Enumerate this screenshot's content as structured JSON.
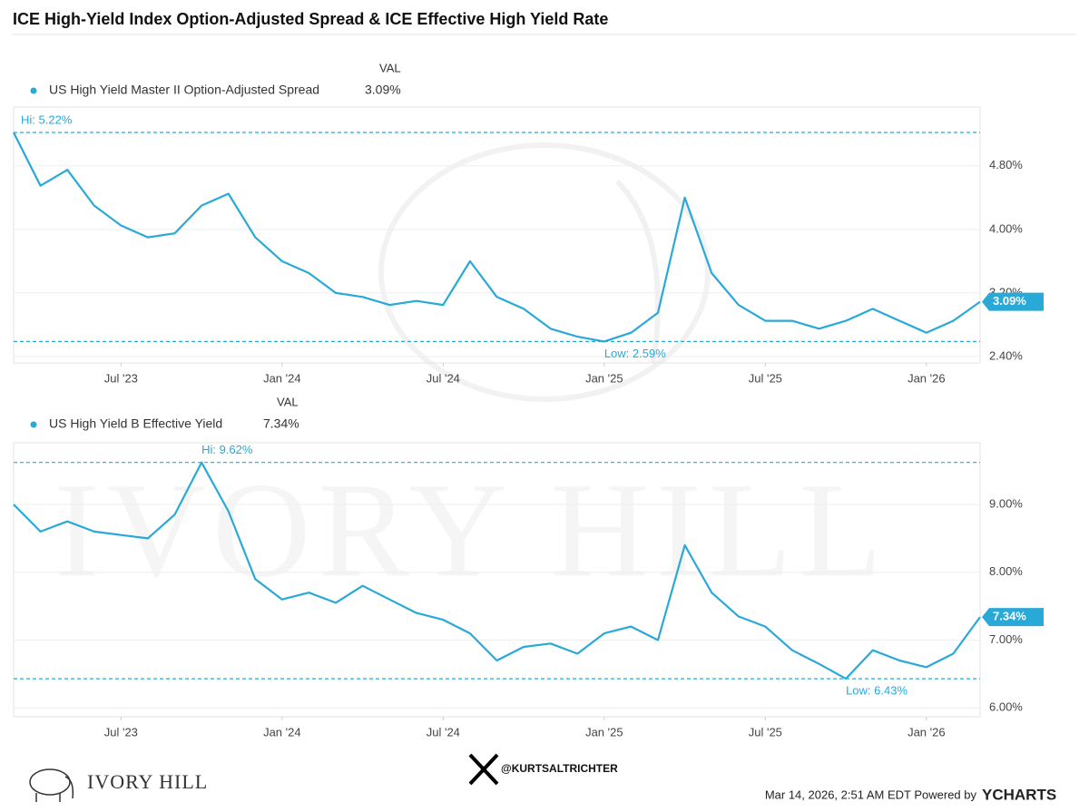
{
  "title": "ICE High-Yield Index Option-Adjusted Spread & ICE Effective High Yield Rate",
  "chart_data": [
    {
      "type": "line",
      "column_header": "VAL",
      "series": [
        {
          "name": "US High Yield Master II Option-Adjusted Spread",
          "color": "#29a9d8",
          "legend_value": "3.09%",
          "values": [
            5.22,
            4.55,
            4.75,
            4.3,
            4.05,
            3.9,
            3.95,
            4.3,
            4.45,
            3.9,
            3.6,
            3.45,
            3.2,
            3.15,
            3.05,
            3.1,
            3.05,
            3.6,
            3.15,
            3.0,
            2.75,
            2.65,
            2.59,
            2.7,
            2.95,
            4.4,
            3.45,
            3.05,
            2.85,
            2.85,
            2.75,
            2.85,
            3.0,
            2.85,
            2.7,
            2.85,
            3.09
          ]
        }
      ],
      "x": [
        "2023-03",
        "2023-04",
        "2023-05",
        "2023-06",
        "2023-07",
        "2023-08",
        "2023-09",
        "2023-10",
        "2023-11",
        "2023-12",
        "2024-01",
        "2024-02",
        "2024-03",
        "2024-04",
        "2024-05",
        "2024-06",
        "2024-07",
        "2024-08",
        "2024-09",
        "2024-10",
        "2024-11",
        "2024-12",
        "2025-01",
        "2025-02",
        "2025-03",
        "2025-04",
        "2025-05",
        "2025-06",
        "2025-07",
        "2025-08",
        "2025-09",
        "2025-10",
        "2025-11",
        "2025-12",
        "2026-01",
        "2026-02",
        "2026-03"
      ],
      "xlim": [
        "2023-03",
        "2026-03"
      ],
      "xticks": [
        {
          "value": "2023-07",
          "label": "Jul '23"
        },
        {
          "value": "2024-01",
          "label": "Jan '24"
        },
        {
          "value": "2024-07",
          "label": "Jul '24"
        },
        {
          "value": "2025-01",
          "label": "Jan '25"
        },
        {
          "value": "2025-07",
          "label": "Jul '25"
        },
        {
          "value": "2026-01",
          "label": "Jan '26"
        }
      ],
      "ylim": [
        2.32,
        5.54
      ],
      "yticks": [
        {
          "value": 2.4,
          "label": "2.40%"
        },
        {
          "value": 3.2,
          "label": "3.20%"
        },
        {
          "value": 4.0,
          "label": "4.00%"
        },
        {
          "value": 4.8,
          "label": "4.80%"
        }
      ],
      "annotations": [
        {
          "label": "Hi: 5.22%",
          "value": 5.22
        },
        {
          "label": "Low: 2.59%",
          "value": 2.59
        }
      ]
    },
    {
      "type": "line",
      "column_header": "VAL",
      "series": [
        {
          "name": "US High Yield B Effective Yield",
          "color": "#29a9d8",
          "legend_value": "7.34%",
          "values": [
            9.0,
            8.6,
            8.75,
            8.6,
            8.55,
            8.5,
            8.85,
            9.62,
            8.9,
            7.9,
            7.6,
            7.7,
            7.55,
            7.8,
            7.6,
            7.4,
            7.3,
            7.1,
            6.7,
            6.9,
            6.95,
            6.8,
            7.1,
            7.2,
            7.0,
            8.4,
            7.7,
            7.35,
            7.2,
            6.85,
            6.65,
            6.43,
            6.85,
            6.7,
            6.6,
            6.8,
            7.34
          ]
        }
      ],
      "x": [
        "2023-03",
        "2023-04",
        "2023-05",
        "2023-06",
        "2023-07",
        "2023-08",
        "2023-09",
        "2023-10",
        "2023-11",
        "2023-12",
        "2024-01",
        "2024-02",
        "2024-03",
        "2024-04",
        "2024-05",
        "2024-06",
        "2024-07",
        "2024-08",
        "2024-09",
        "2024-10",
        "2024-11",
        "2024-12",
        "2025-01",
        "2025-02",
        "2025-03",
        "2025-04",
        "2025-05",
        "2025-06",
        "2025-07",
        "2025-08",
        "2025-09",
        "2025-10",
        "2025-11",
        "2025-12",
        "2026-01",
        "2026-02",
        "2026-03"
      ],
      "xlim": [
        "2023-03",
        "2026-03"
      ],
      "xticks": [
        {
          "value": "2023-07",
          "label": "Jul '23"
        },
        {
          "value": "2024-01",
          "label": "Jan '24"
        },
        {
          "value": "2024-07",
          "label": "Jul '24"
        },
        {
          "value": "2025-01",
          "label": "Jan '25"
        },
        {
          "value": "2025-07",
          "label": "Jul '25"
        },
        {
          "value": "2026-01",
          "label": "Jan '26"
        }
      ],
      "ylim": [
        5.87,
        9.91
      ],
      "yticks": [
        {
          "value": 6.0,
          "label": "6.00%"
        },
        {
          "value": 7.0,
          "label": "7.00%"
        },
        {
          "value": 8.0,
          "label": "8.00%"
        },
        {
          "value": 9.0,
          "label": "9.00%"
        }
      ],
      "annotations": [
        {
          "label": "Hi: 9.62%",
          "value": 9.62
        },
        {
          "label": "Low: 6.43%",
          "value": 6.43
        }
      ]
    }
  ],
  "footer": {
    "timestamp": "Mar 14, 2026, 2:51 AM EDT Powered by",
    "brand": "YCHARTS",
    "handle": "@KURTSALTRICHTER",
    "logo": "IVORY HILL"
  }
}
